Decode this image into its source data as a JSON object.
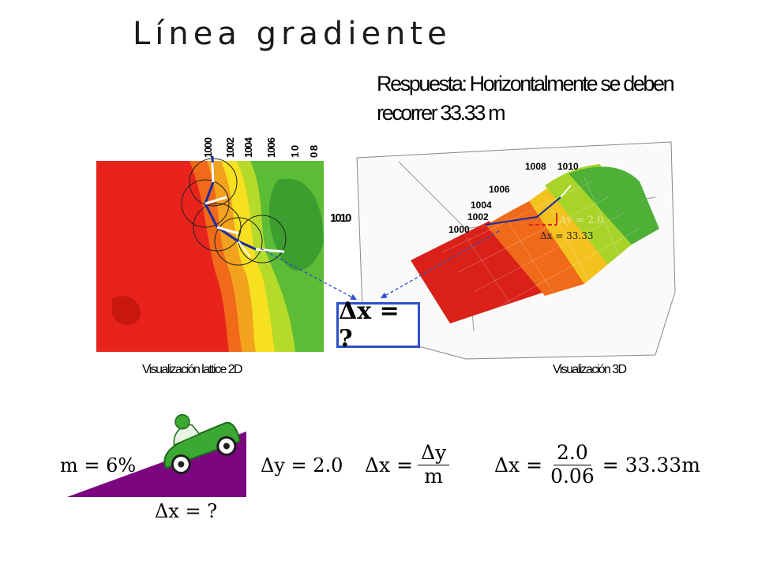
{
  "title": "Línea gradiente",
  "answer": "Respuesta: Horizontalmente se deben recorrer 33.33 m",
  "map2d": {
    "caption": "Visualización lattice 2D",
    "contour_labels": [
      "1000",
      "1002",
      "1004",
      "1006",
      "1 0",
      "0 8"
    ],
    "side_label": "1010"
  },
  "map3d": {
    "caption": "Visualización 3D",
    "contour_labels": [
      "1008",
      "1010",
      "1006",
      "1004",
      "1002",
      "1000"
    ],
    "dy_label": "Δy = 2.0",
    "dx_label": "Δx = 33.33"
  },
  "question_box": "Δx = ?",
  "formulas": {
    "slope": "m = 6%",
    "slope_dx": "Δx = ?",
    "dy": "Δy = 2.0",
    "dx_lhs": "Δx =",
    "dx_num": "Δy",
    "dx_den": "m",
    "calc_lhs": "Δx =",
    "calc_num": "2.0",
    "calc_den": "0.06",
    "calc_result": "= 33.33m"
  },
  "colors": {
    "ramp": "#7b0680",
    "car": "#3aa832",
    "box_border": "#2d4fc8",
    "path": "#1a2aa0"
  }
}
